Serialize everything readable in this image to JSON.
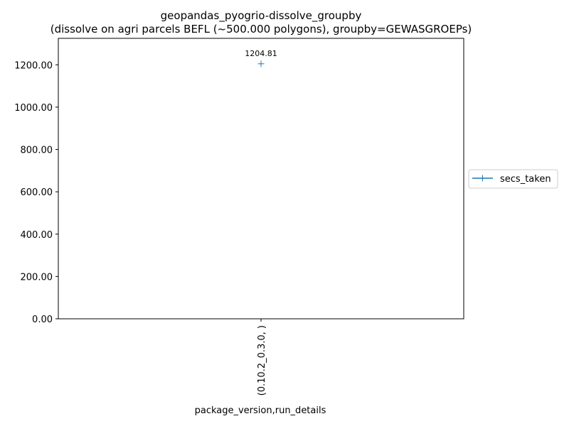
{
  "chart_data": {
    "type": "line",
    "title": "geopandas_pyogrio-dissolve_groupby",
    "subtitle": "(dissolve on agri parcels BEFL (~500.000 polygons), groupby=GEWASGROEPs)",
    "xlabel": "package_version,run_details",
    "ylabel": "",
    "categories": [
      "(0.10.2_0.3.0, )"
    ],
    "series": [
      {
        "name": "secs_taken",
        "values": [
          1204.81
        ],
        "value_labels": [
          "1204.81"
        ],
        "color": "#1f77b4",
        "marker": "plus"
      }
    ],
    "ylim": [
      0,
      1325
    ],
    "yticks": [
      0,
      200,
      400,
      600,
      800,
      1000,
      1200
    ],
    "ytick_labels": [
      "0.00",
      "200.00",
      "400.00",
      "600.00",
      "800.00",
      "1000.00",
      "1200.00"
    ],
    "grid": false,
    "legend": "outside-right"
  }
}
